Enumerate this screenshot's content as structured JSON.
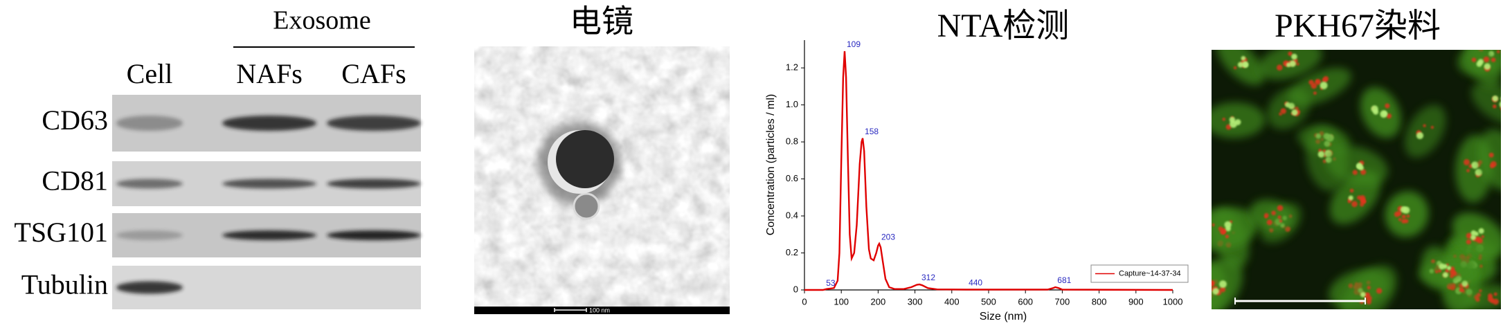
{
  "western_blot": {
    "group_label": "Exosome",
    "lanes": [
      "Cell",
      "NAFs",
      "CAFs"
    ],
    "proteins": [
      "CD63",
      "CD81",
      "TSG101",
      "Tubulin"
    ]
  },
  "tem": {
    "title": "电镜",
    "scale_bar": "100 nm"
  },
  "chart_data": {
    "type": "line",
    "title": "NTA检测",
    "x_label": "Size (nm)",
    "y_label": "Concentration (particles / ml)",
    "x": [
      0,
      50,
      60,
      80,
      90,
      95,
      100,
      105,
      109,
      113,
      118,
      123,
      128,
      135,
      142,
      150,
      155,
      158,
      162,
      168,
      175,
      180,
      188,
      195,
      200,
      203,
      207,
      213,
      220,
      230,
      245,
      270,
      290,
      305,
      312,
      320,
      335,
      360,
      440,
      660,
      675,
      681,
      690,
      700,
      1000
    ],
    "series": [
      {
        "name": "Capture~14-37-34",
        "color": "#e00000",
        "values": [
          0,
          0,
          0.005,
          0.01,
          0.05,
          0.2,
          0.7,
          1.15,
          1.29,
          1.15,
          0.7,
          0.3,
          0.17,
          0.2,
          0.35,
          0.68,
          0.8,
          0.82,
          0.75,
          0.45,
          0.22,
          0.17,
          0.16,
          0.2,
          0.24,
          0.25,
          0.23,
          0.15,
          0.06,
          0.015,
          0.005,
          0.005,
          0.015,
          0.028,
          0.03,
          0.025,
          0.01,
          0.003,
          0.002,
          0.002,
          0.01,
          0.015,
          0.01,
          0.002,
          0
        ]
      }
    ],
    "peak_labels": [
      53,
      109,
      158,
      203,
      312,
      440,
      681
    ],
    "xlim": [
      0,
      1000
    ],
    "xticks": [
      0,
      100,
      200,
      300,
      400,
      500,
      600,
      700,
      800,
      900,
      1000
    ],
    "ylim": [
      0,
      1.35
    ],
    "yticks": [
      0,
      0.2,
      0.4,
      0.6,
      0.8,
      {
        "value": 1,
        "label": "1.0"
      },
      1.2
    ],
    "legend": "lower right"
  },
  "pkh67": {
    "title": "PKH67染料"
  }
}
